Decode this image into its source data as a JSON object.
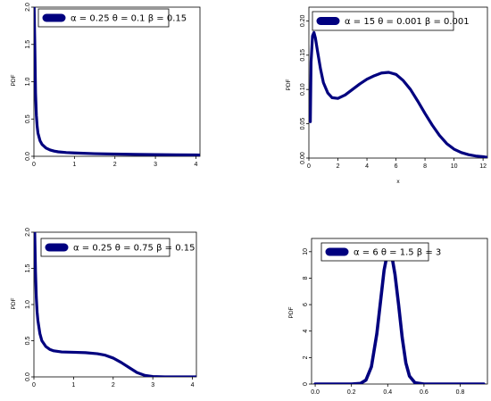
{
  "curve_color": "#00007F",
  "chart_data": [
    {
      "type": "line",
      "title": "",
      "xlabel": "",
      "ylabel": "PDF",
      "xlim": [
        0,
        4.1
      ],
      "ylim": [
        0,
        2.0
      ],
      "xticks": [
        0,
        1,
        2,
        3,
        4
      ],
      "yticks": [
        0.0,
        0.5,
        1.0,
        1.5,
        2.0
      ],
      "xtick_labels": [
        "0",
        "1",
        "2",
        "3",
        "4"
      ],
      "ytick_labels": [
        "0.0",
        "0.5",
        "1.0",
        "1.5",
        "2.0"
      ],
      "legend": "α = 0.25  θ = 0.1  β = 0.15",
      "legend_position": "top-left",
      "series": [
        {
          "x": [
            0.005,
            0.02,
            0.04,
            0.06,
            0.08,
            0.1,
            0.15,
            0.2,
            0.3,
            0.4,
            0.5,
            0.6,
            0.8,
            1.0,
            1.5,
            2.0,
            2.5,
            3.0,
            3.5,
            4.0,
            4.1
          ],
          "values": [
            2.0,
            1.55,
            0.85,
            0.55,
            0.4,
            0.31,
            0.21,
            0.16,
            0.11,
            0.085,
            0.07,
            0.06,
            0.05,
            0.045,
            0.035,
            0.03,
            0.025,
            0.022,
            0.02,
            0.018,
            0.017
          ]
        }
      ]
    },
    {
      "type": "line",
      "title": "",
      "xlabel": "x",
      "ylabel": "PDF",
      "xlim": [
        0,
        12.3
      ],
      "ylim": [
        0,
        0.22
      ],
      "xticks": [
        0,
        2,
        4,
        6,
        8,
        10,
        12
      ],
      "yticks": [
        0.0,
        0.05,
        0.1,
        0.15,
        0.2
      ],
      "xtick_labels": [
        "0",
        "2",
        "4",
        "6",
        "8",
        "10",
        "12"
      ],
      "ytick_labels": [
        "0.00",
        "0.05",
        "0.10",
        "0.15",
        "0.20"
      ],
      "legend": "α = 15  θ = 0.001  β = 0.001",
      "legend_position": "top-left",
      "series": [
        {
          "x": [
            0.1,
            0.15,
            0.25,
            0.35,
            0.45,
            0.6,
            0.8,
            1.0,
            1.3,
            1.6,
            2.0,
            2.5,
            3.0,
            3.5,
            4.0,
            4.5,
            5.0,
            5.5,
            6.0,
            6.5,
            7.0,
            7.5,
            8.0,
            8.5,
            9.0,
            9.5,
            10.0,
            10.5,
            11.0,
            11.5,
            12.0,
            12.3
          ],
          "values": [
            0.053,
            0.14,
            0.178,
            0.183,
            0.175,
            0.155,
            0.13,
            0.11,
            0.095,
            0.088,
            0.087,
            0.092,
            0.1,
            0.108,
            0.115,
            0.12,
            0.124,
            0.125,
            0.122,
            0.113,
            0.1,
            0.083,
            0.065,
            0.048,
            0.033,
            0.021,
            0.013,
            0.008,
            0.005,
            0.003,
            0.002,
            0.001
          ]
        }
      ]
    },
    {
      "type": "line",
      "title": "",
      "xlabel": "",
      "ylabel": "PDF",
      "xlim": [
        0,
        4.1
      ],
      "ylim": [
        0,
        2.0
      ],
      "xticks": [
        0,
        1,
        2,
        3,
        4
      ],
      "yticks": [
        0.0,
        0.5,
        1.0,
        1.5,
        2.0
      ],
      "xtick_labels": [
        "0",
        "1",
        "2",
        "3",
        "4"
      ],
      "ytick_labels": [
        "0.0",
        "0.5",
        "1.0",
        "1.5",
        "2.0"
      ],
      "legend": "α = 0.25  θ = 0.75  β = 0.15",
      "legend_position": "top-left",
      "series": [
        {
          "x": [
            0.02,
            0.04,
            0.06,
            0.08,
            0.1,
            0.15,
            0.2,
            0.3,
            0.4,
            0.5,
            0.7,
            1.0,
            1.3,
            1.6,
            1.8,
            2.0,
            2.2,
            2.4,
            2.6,
            2.8,
            3.0,
            3.3,
            3.6,
            4.1
          ],
          "values": [
            2.0,
            1.45,
            1.1,
            0.9,
            0.78,
            0.6,
            0.5,
            0.42,
            0.38,
            0.36,
            0.345,
            0.34,
            0.335,
            0.32,
            0.3,
            0.26,
            0.2,
            0.13,
            0.06,
            0.02,
            0.005,
            0.001,
            0.0,
            0.0
          ]
        }
      ]
    },
    {
      "type": "line",
      "title": "",
      "xlabel": "",
      "ylabel": "PDF",
      "xlim": [
        -0.02,
        0.95
      ],
      "ylim": [
        0,
        11.0
      ],
      "xticks": [
        0.0,
        0.2,
        0.4,
        0.6,
        0.8
      ],
      "yticks": [
        0,
        2,
        4,
        6,
        8,
        10
      ],
      "xtick_labels": [
        "0.0",
        "0.2",
        "0.4",
        "0.6",
        "0.8"
      ],
      "ytick_labels": [
        "0",
        "2",
        "4",
        "6",
        "8",
        "10"
      ],
      "legend": "α = 6  θ = 1.5  β = 3",
      "legend_position": "top-left",
      "series": [
        {
          "x": [
            0.0,
            0.1,
            0.2,
            0.25,
            0.28,
            0.31,
            0.34,
            0.36,
            0.38,
            0.4,
            0.41,
            0.42,
            0.44,
            0.46,
            0.48,
            0.5,
            0.52,
            0.55,
            0.6,
            0.7,
            0.8,
            0.93
          ],
          "values": [
            0.0,
            0.0,
            0.0,
            0.05,
            0.3,
            1.3,
            3.8,
            6.2,
            8.6,
            10.0,
            10.2,
            9.9,
            8.3,
            6.0,
            3.5,
            1.6,
            0.6,
            0.1,
            0.0,
            0.0,
            0.0,
            0.0
          ]
        }
      ]
    }
  ]
}
